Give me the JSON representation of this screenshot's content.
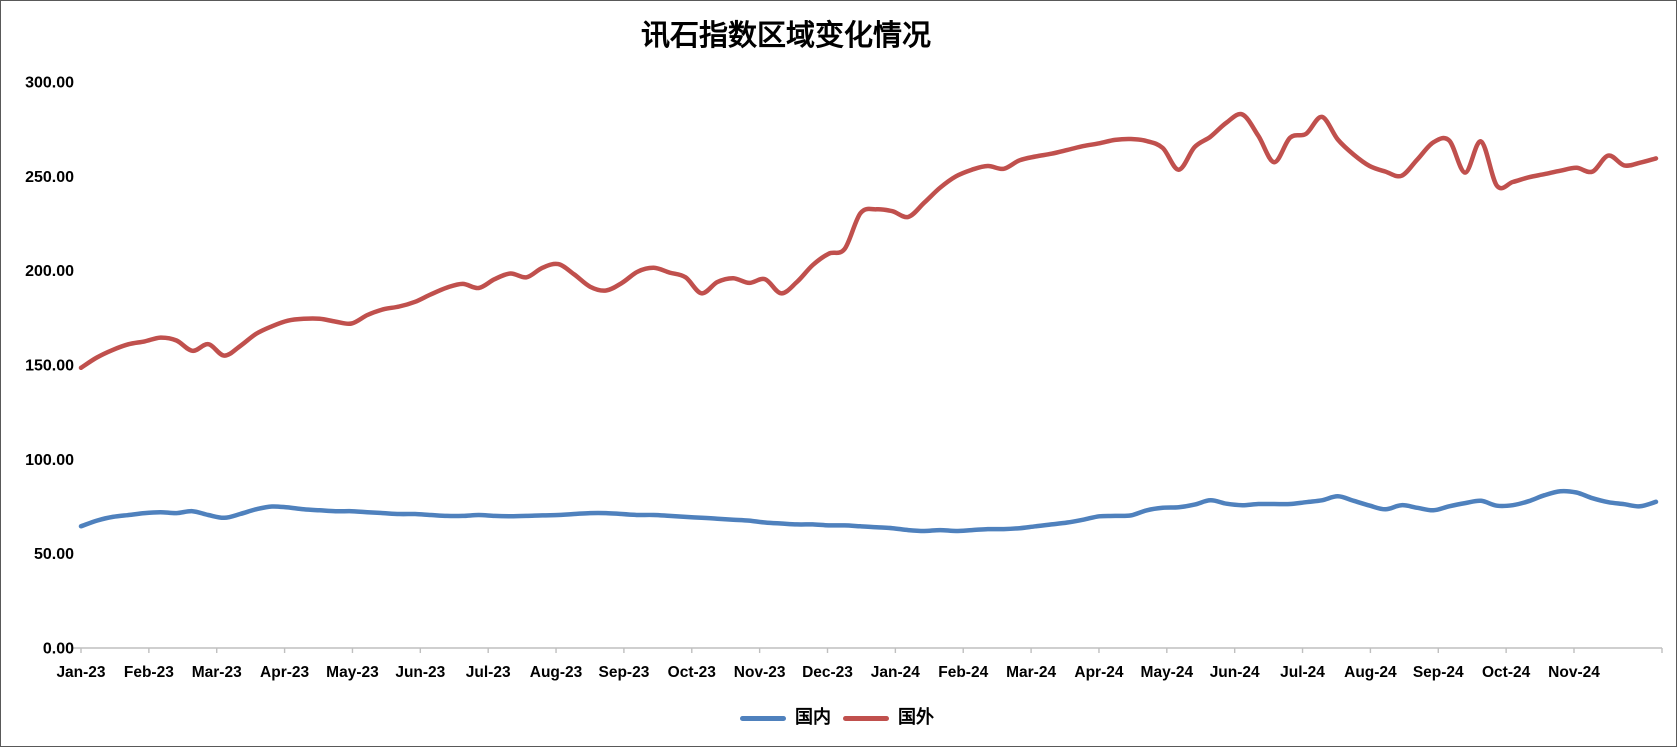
{
  "chart": {
    "title": "讯石指数区域变化情况",
    "legend_items": [
      {
        "label": "国内",
        "color": "#4F81BD"
      },
      {
        "label": "国外",
        "color": "#C0504D"
      }
    ]
  },
  "chart_data": {
    "type": "line",
    "title": "讯石指数区域变化情况",
    "grid": false,
    "smooth": true,
    "legend_position": "bottom",
    "axis_color": "#BFBFBF",
    "line_width": 4.5,
    "ylim": [
      0,
      300
    ],
    "y_tick_step": 50,
    "y_tick_labels": [
      "0.00",
      "50.00",
      "100.00",
      "150.00",
      "200.00",
      "250.00",
      "300.00"
    ],
    "x_unit": "week",
    "x_tick_labels": [
      "Jan-23",
      "Feb-23",
      "Mar-23",
      "Apr-23",
      "May-23",
      "Jun-23",
      "Jul-23",
      "Aug-23",
      "Sep-23",
      "Oct-23",
      "Nov-23",
      "Dec-23",
      "Jan-24",
      "Feb-24",
      "Mar-24",
      "Apr-24",
      "May-24",
      "Jun-24",
      "Jul-24",
      "Aug-24",
      "Sep-24",
      "Oct-24",
      "Nov-24"
    ],
    "series": [
      {
        "name": "国内",
        "color": "#4F81BD",
        "values": [
          64.5,
          67.5,
          69.5,
          70.5,
          71.5,
          72,
          71.5,
          72.5,
          70.5,
          69,
          71,
          73.5,
          75,
          74.5,
          73.5,
          73,
          72.5,
          72.5,
          72,
          71.5,
          71,
          71,
          70.5,
          70,
          70,
          70.5,
          70,
          69.8,
          70,
          70.3,
          70.5,
          71,
          71.5,
          71.5,
          71,
          70.5,
          70.5,
          70,
          69.5,
          69,
          68.5,
          68,
          67.5,
          66.5,
          66,
          65.5,
          65.5,
          65,
          65,
          64.5,
          64,
          63.5,
          62.5,
          62,
          62.5,
          62,
          62.5,
          63,
          63,
          63.5,
          64.5,
          65.5,
          66.5,
          68,
          69.8,
          70,
          70.3,
          73,
          74.3,
          74.6,
          76,
          78.3,
          76.5,
          75.7,
          76.3,
          76.3,
          76.3,
          77.3,
          78.3,
          80.4,
          78,
          75.5,
          73.5,
          75.7,
          74.3,
          73,
          75.1,
          76.8,
          78,
          75.4,
          75.7,
          77.8,
          81,
          83.1,
          82.4,
          79.4,
          77.3,
          76.2,
          75.1,
          77.5
        ]
      },
      {
        "name": "国外",
        "color": "#C0504D",
        "values": [
          148.5,
          154,
          158,
          161,
          162.5,
          164.5,
          163,
          157.5,
          161,
          155,
          160,
          166.5,
          170.5,
          173.5,
          174.5,
          174.5,
          173,
          172,
          176.5,
          179.5,
          181,
          183.5,
          187.5,
          191,
          193,
          190.8,
          195.5,
          198.5,
          196.5,
          201.5,
          203.5,
          198,
          191.5,
          189.5,
          193.5,
          199.5,
          201.5,
          199,
          196.5,
          188,
          194,
          196,
          193.5,
          195.5,
          188,
          194,
          203,
          209,
          211.5,
          230.5,
          232.5,
          231.5,
          228.5,
          236,
          244,
          250,
          253.5,
          255.5,
          254,
          258.5,
          260.5,
          262,
          264,
          266,
          267.5,
          269.3,
          269.8,
          268.7,
          265,
          253.5,
          265.5,
          271,
          278.5,
          282.8,
          271.5,
          257.5,
          270.5,
          272.5,
          281.5,
          269.5,
          261.5,
          255.5,
          252.5,
          250.3,
          259,
          268,
          269,
          252,
          268.5,
          245,
          247,
          249.5,
          251.2,
          253,
          254.5,
          252.5,
          261,
          255.8,
          257.2,
          259.5
        ]
      }
    ]
  }
}
